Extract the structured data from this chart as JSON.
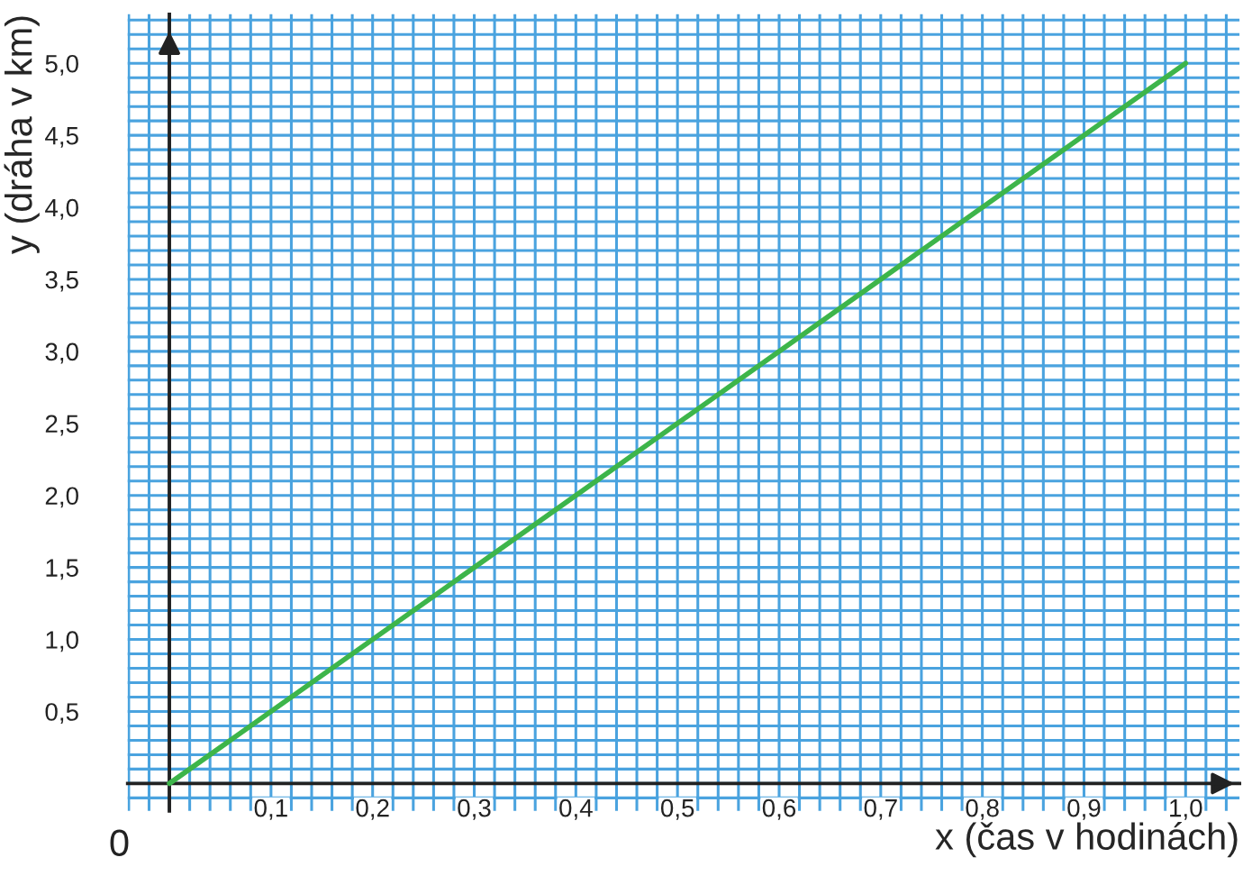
{
  "chart_data": {
    "type": "line",
    "xlabel": "x (čas v hodinách)",
    "ylabel": "y (dráha v km)",
    "x": [
      0,
      1.0
    ],
    "series": [
      {
        "color": "#3db54a",
        "values": [
          0,
          5.0
        ]
      }
    ],
    "xlim": [
      -0.041,
      1.053
    ],
    "ylim": [
      -0.19,
      5.34
    ],
    "xticks": [
      {
        "value": 0.1,
        "label": "0,1"
      },
      {
        "value": 0.2,
        "label": "0,2"
      },
      {
        "value": 0.3,
        "label": "0,3"
      },
      {
        "value": 0.4,
        "label": "0,4"
      },
      {
        "value": 0.5,
        "label": "0,5"
      },
      {
        "value": 0.6,
        "label": "0,6"
      },
      {
        "value": 0.7,
        "label": "0,7"
      },
      {
        "value": 0.8,
        "label": "0,8"
      },
      {
        "value": 0.9,
        "label": "0,9"
      },
      {
        "value": 1.0,
        "label": "1,0"
      }
    ],
    "yticks": [
      {
        "value": 0.5,
        "label": "0,5"
      },
      {
        "value": 1.0,
        "label": "1,0"
      },
      {
        "value": 1.5,
        "label": "1,5"
      },
      {
        "value": 2.0,
        "label": "2,0"
      },
      {
        "value": 2.5,
        "label": "2,5"
      },
      {
        "value": 3.0,
        "label": "3,0"
      },
      {
        "value": 3.5,
        "label": "3,5"
      },
      {
        "value": 4.0,
        "label": "4,0"
      },
      {
        "value": 4.5,
        "label": "4,5"
      },
      {
        "value": 5.0,
        "label": "5,0"
      }
    ],
    "annotations": [
      {
        "text": "0",
        "x": 0,
        "y": 0
      }
    ],
    "grid": true,
    "marker": "none",
    "line_style": "solid"
  }
}
